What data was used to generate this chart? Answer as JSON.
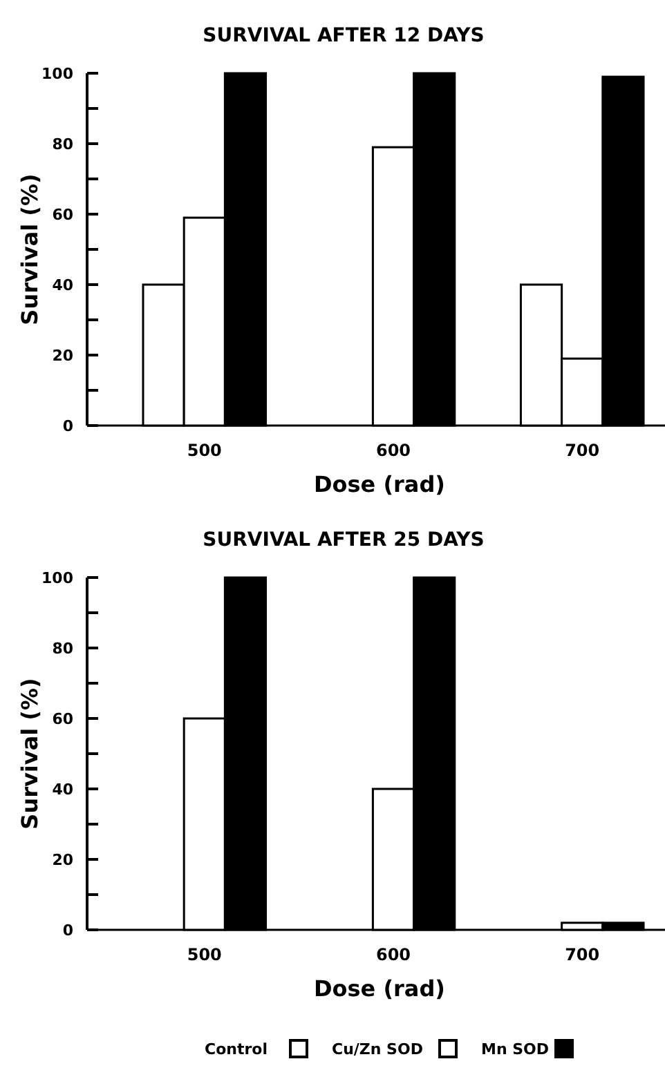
{
  "chart_data": [
    {
      "type": "bar",
      "title": "SURVIVAL AFTER 12 DAYS",
      "xlabel": "Dose (rad)",
      "ylabel": "Survival (%)",
      "categories": [
        "500",
        "600",
        "700"
      ],
      "series": [
        {
          "color": "#ffffff",
          "values": [
            40,
            0,
            40
          ]
        },
        {
          "color": "#ffffff",
          "values": [
            59,
            79,
            19
          ]
        },
        {
          "color": "#000000",
          "values": [
            100,
            100,
            99
          ]
        }
      ],
      "ylim": [
        0,
        100
      ],
      "yticks": [
        0,
        {
          "value": 10,
          "label": null
        },
        20,
        {
          "value": 30,
          "label": null
        },
        40,
        {
          "value": 50,
          "label": null
        },
        60,
        {
          "value": 70,
          "label": null
        },
        80,
        {
          "value": 90,
          "label": null
        },
        100
      ],
      "grid": false,
      "legend": false
    },
    {
      "type": "bar",
      "title": "SURVIVAL AFTER 25 DAYS",
      "xlabel": "Dose (rad)",
      "ylabel": "Survival (%)",
      "categories": [
        "500",
        "600",
        "700"
      ],
      "series": [
        {
          "name": "Control",
          "color": "#ffffff",
          "values": [
            0,
            0,
            0
          ]
        },
        {
          "name": "Cu/Zn SOD",
          "color": "#ffffff",
          "values": [
            60,
            40,
            2
          ]
        },
        {
          "name": "Mn SOD",
          "color": "#000000",
          "values": [
            100,
            100,
            2
          ]
        }
      ],
      "ylim": [
        0,
        100
      ],
      "yticks": [
        0,
        {
          "value": 10,
          "label": null
        },
        20,
        {
          "value": 30,
          "label": null
        },
        40,
        {
          "value": 50,
          "label": null
        },
        60,
        {
          "value": 70,
          "label": null
        },
        80,
        {
          "value": 90,
          "label": null
        },
        100
      ],
      "grid": false,
      "legend": "bottom"
    }
  ]
}
